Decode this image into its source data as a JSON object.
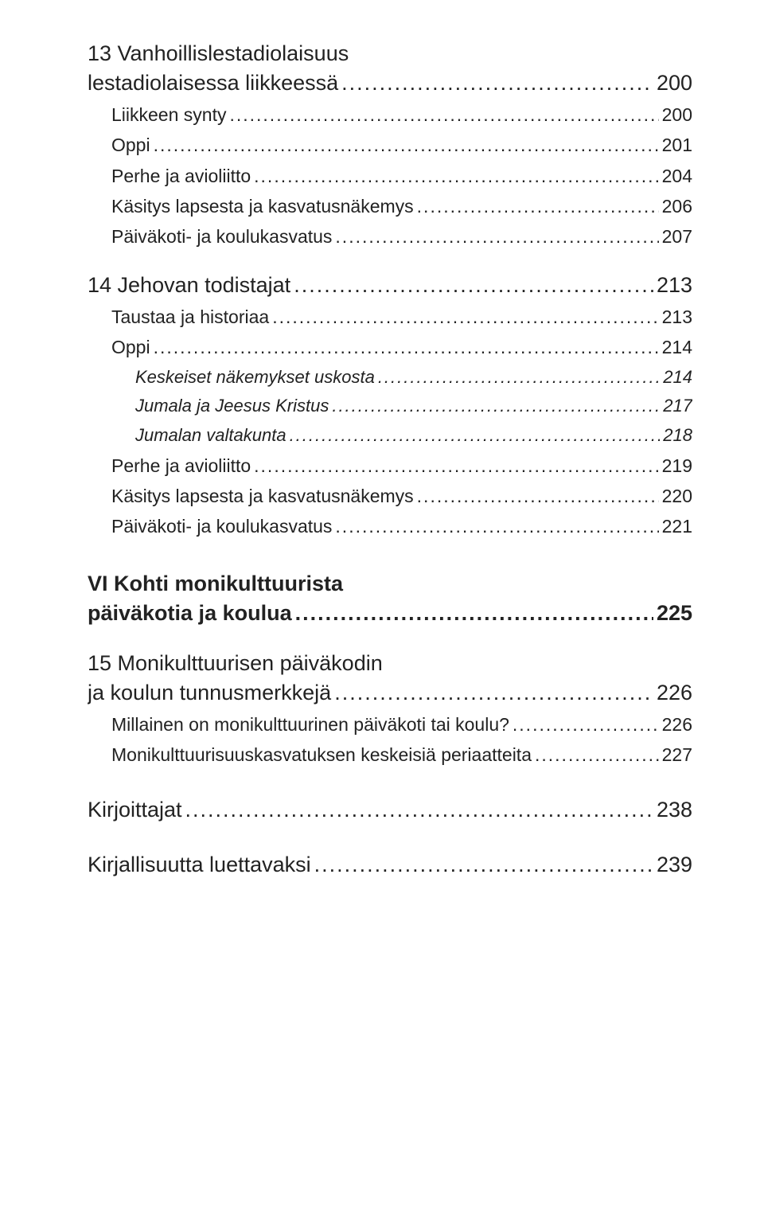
{
  "ch13": {
    "line1": "13 Vanhoillislestadiolaisuus",
    "line2": "lestadiolaisessa liikkeessä",
    "page": "200",
    "items": [
      {
        "label": "Liikkeen synty",
        "page": "200"
      },
      {
        "label": "Oppi",
        "page": "201"
      },
      {
        "label": "Perhe ja avioliitto",
        "page": "204"
      },
      {
        "label": "Käsitys lapsesta ja kasvatusnäkemys",
        "page": "206"
      },
      {
        "label": "Päiväkoti- ja koulukasvatus",
        "page": "207"
      }
    ]
  },
  "ch14": {
    "title": "14 Jehovan todistajat",
    "page": "213",
    "items": [
      {
        "label": "Taustaa ja historiaa",
        "page": "213"
      },
      {
        "label": "Oppi",
        "page": "214"
      }
    ],
    "subitems": [
      {
        "label": "Keskeiset näkemykset uskosta",
        "page": "214"
      },
      {
        "label": "Jumala ja Jeesus Kristus",
        "page": "217"
      },
      {
        "label": "Jumalan valtakunta",
        "page": "218"
      }
    ],
    "items2": [
      {
        "label": "Perhe ja avioliitto",
        "page": "219"
      },
      {
        "label": "Käsitys lapsesta ja kasvatusnäkemys",
        "page": "220"
      },
      {
        "label": "Päiväkoti- ja koulukasvatus",
        "page": "221"
      }
    ]
  },
  "part6": {
    "line1": "VI Kohti monikulttuurista",
    "line2": "päiväkotia ja koulua",
    "page": "225"
  },
  "ch15": {
    "line1": "15 Monikulttuurisen päiväkodin",
    "line2": "ja koulun tunnusmerkkejä",
    "page": "226",
    "items": [
      {
        "label": "Millainen on monikulttuurinen päiväkoti tai koulu?",
        "page": "226"
      },
      {
        "label": "Monikulttuurisuuskasvatuksen keskeisiä periaatteita",
        "page": "227"
      }
    ]
  },
  "kirjoittajat": {
    "label": "Kirjoittajat",
    "page": "238"
  },
  "kirjallisuutta": {
    "label": "Kirjallisuutta luettavaksi",
    "page": "239"
  }
}
